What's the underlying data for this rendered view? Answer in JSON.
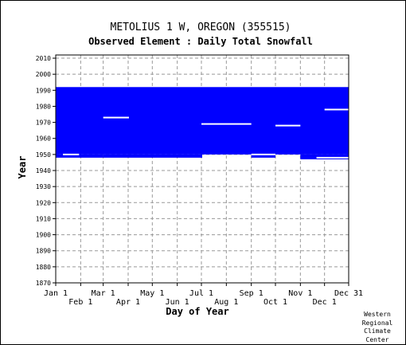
{
  "chart_data": {
    "type": "heatmap",
    "title": "METOLIUS 1 W, OREGON   (355515)",
    "subtitle": "Observed Element : Daily Total Snowfall",
    "xlabel": "Day of Year",
    "ylabel": "Year",
    "ylim": [
      1870,
      2012
    ],
    "yticks": [
      1870,
      1880,
      1890,
      1900,
      1910,
      1920,
      1930,
      1940,
      1950,
      1960,
      1970,
      1980,
      1990,
      2000,
      2010
    ],
    "xticks_upper": [
      "Jan 1",
      "Mar 1",
      "May 1",
      "Jul 1",
      "Sep 1",
      "Nov 1",
      "Dec 31"
    ],
    "xticks_lower": [
      "Feb 1",
      "Apr 1",
      "Jun 1",
      "Aug 1",
      "Oct 1",
      "Dec 1"
    ],
    "xticks_upper_day": [
      1,
      60,
      121,
      182,
      244,
      305,
      365
    ],
    "xticks_lower_day": [
      32,
      91,
      152,
      213,
      274,
      335
    ],
    "grid": true,
    "data_color": "#0000ff",
    "period_of_record": {
      "first_year": 1948,
      "last_year": 1992
    },
    "coverage": [
      {
        "start_day": 1,
        "end_day": 365,
        "year_from": 1950,
        "year_to": 1992
      },
      {
        "start_day": 1,
        "end_day": 60,
        "year_from": 1948,
        "year_to": 1950
      },
      {
        "start_day": 60,
        "end_day": 183,
        "year_from": 1948,
        "year_to": 1950
      },
      {
        "start_day": 244,
        "end_day": 274,
        "year_from": 1948,
        "year_to": 1950
      },
      {
        "start_day": 305,
        "end_day": 365,
        "year_from": 1947,
        "year_to": 1950
      }
    ],
    "gaps": [
      {
        "start_day": 10,
        "end_day": 30,
        "year": 1950
      },
      {
        "start_day": 60,
        "end_day": 92,
        "year": 1973
      },
      {
        "start_day": 182,
        "end_day": 244,
        "year": 1969
      },
      {
        "start_day": 274,
        "end_day": 305,
        "year": 1968
      },
      {
        "start_day": 244,
        "end_day": 274,
        "year": 1950
      },
      {
        "start_day": 335,
        "end_day": 365,
        "year": 1978
      },
      {
        "start_day": 325,
        "end_day": 365,
        "year": 1948
      }
    ]
  },
  "credit": [
    "Western",
    "Regional",
    "Climate",
    "Center"
  ]
}
